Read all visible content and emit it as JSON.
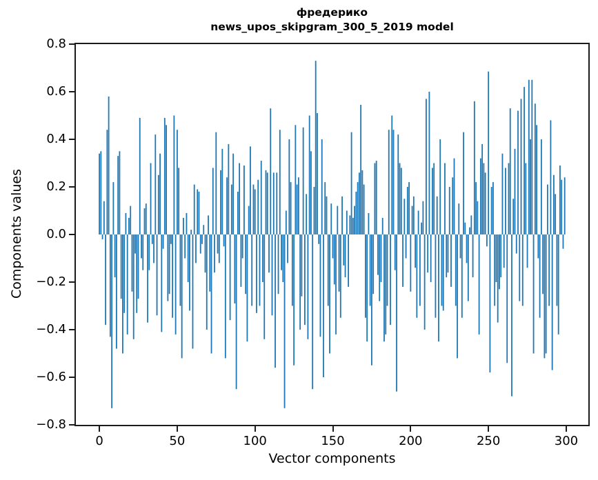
{
  "chart_data": {
    "type": "bar",
    "title": "фредерико",
    "subtitle": "news_upos_skipgram_300_5_2019 model",
    "xlabel": "Vector components",
    "ylabel": "Components values",
    "xlim": [
      -15.1,
      314.2
    ],
    "ylim": [
      -0.8,
      0.8
    ],
    "grid": false,
    "legend": "none",
    "bar_color": "#1f77b4",
    "bar_width": 0.8,
    "xticks": {
      "values": [
        0,
        50,
        100,
        150,
        200,
        250,
        300
      ],
      "labels": [
        "0",
        "50",
        "100",
        "150",
        "200",
        "250",
        "300"
      ]
    },
    "yticks": {
      "values": [
        0.8,
        0.6,
        0.4,
        0.2,
        0.0,
        -0.2,
        -0.4,
        -0.6,
        -0.8
      ],
      "labels": [
        "0.8",
        "0.6",
        "0.4",
        "0.2",
        "0.0",
        "−0.2",
        "−0.4",
        "−0.6",
        "−0.8"
      ]
    },
    "x_start": 0,
    "values": [
      0.34,
      0.35,
      -0.02,
      0.14,
      -0.38,
      0.44,
      0.58,
      -0.43,
      -0.73,
      0.22,
      -0.18,
      -0.48,
      0.33,
      0.35,
      -0.27,
      -0.5,
      -0.33,
      0.09,
      -0.42,
      0.07,
      0.12,
      -0.24,
      -0.44,
      -0.08,
      -0.33,
      -0.27,
      0.49,
      -0.1,
      -0.15,
      0.11,
      0.13,
      -0.37,
      -0.15,
      0.3,
      -0.04,
      -0.12,
      0.42,
      -0.34,
      0.25,
      0.34,
      -0.41,
      -0.06,
      0.49,
      0.46,
      -0.28,
      -0.25,
      -0.04,
      -0.35,
      0.5,
      -0.42,
      0.44,
      0.28,
      -0.3,
      -0.52,
      0.07,
      -0.1,
      0.09,
      -0.2,
      -0.32,
      0.02,
      -0.48,
      0.21,
      -0.12,
      0.19,
      0.18,
      -0.08,
      -0.04,
      0.04,
      -0.16,
      -0.4,
      0.08,
      -0.24,
      -0.5,
      0.28,
      -0.16,
      0.43,
      -0.08,
      -0.12,
      0.27,
      0.36,
      -0.05,
      -0.52,
      0.24,
      0.38,
      -0.36,
      0.21,
      0.34,
      -0.29,
      -0.65,
      0.18,
      0.3,
      -0.22,
      -0.1,
      0.29,
      -0.25,
      -0.45,
      0.12,
      0.37,
      -0.3,
      0.21,
      0.19,
      -0.33,
      0.23,
      -0.3,
      0.31,
      -0.2,
      -0.44,
      0.27,
      0.26,
      -0.16,
      0.53,
      -0.34,
      0.26,
      -0.56,
      0.26,
      -0.25,
      0.44,
      -0.15,
      -0.2,
      -0.73,
      0.1,
      -0.12,
      0.4,
      0.22,
      -0.3,
      -0.55,
      0.46,
      0.21,
      0.24,
      -0.4,
      -0.26,
      0.45,
      -0.38,
      0.17,
      -0.44,
      0.5,
      0.35,
      -0.65,
      0.2,
      0.73,
      0.51,
      -0.04,
      -0.43,
      0.4,
      -0.6,
      0.22,
      0.16,
      -0.3,
      -0.5,
      0.13,
      -0.1,
      -0.21,
      -0.42,
      0.12,
      -0.24,
      -0.35,
      0.16,
      -0.13,
      -0.18,
      0.1,
      -0.22,
      0.08,
      0.43,
      0.07,
      0.12,
      0.18,
      0.22,
      0.26,
      0.545,
      0.27,
      0.21,
      -0.35,
      -0.45,
      0.09,
      -0.3,
      -0.55,
      -0.25,
      0.3,
      0.31,
      -0.17,
      -0.28,
      -0.2,
      0.07,
      -0.45,
      -0.42,
      -0.3,
      0.44,
      -0.38,
      0.5,
      0.44,
      -0.15,
      -0.66,
      0.42,
      0.3,
      0.28,
      -0.22,
      0.15,
      -0.1,
      0.2,
      0.22,
      -0.24,
      0.12,
      0.16,
      -0.14,
      -0.35,
      0.1,
      -0.3,
      0.05,
      0.14,
      -0.4,
      0.57,
      -0.16,
      0.6,
      -0.2,
      0.28,
      0.3,
      -0.35,
      0.16,
      -0.45,
      0.4,
      -0.3,
      -0.32,
      0.3,
      -0.18,
      -0.16,
      0.2,
      -0.22,
      0.24,
      0.32,
      -0.3,
      -0.52,
      0.13,
      -0.1,
      -0.35,
      0.43,
      0.05,
      -0.12,
      -0.28,
      0.03,
      0.08,
      -0.18,
      0.56,
      0.22,
      0.14,
      -0.42,
      0.32,
      0.38,
      0.3,
      0.26,
      -0.05,
      0.685,
      -0.58,
      0.2,
      0.22,
      -0.3,
      -0.2,
      -0.37,
      -0.23,
      -0.18,
      0.34,
      -0.14,
      0.28,
      -0.54,
      0.3,
      0.53,
      -0.68,
      0.15,
      0.36,
      -0.08,
      0.52,
      -0.28,
      0.57,
      -0.3,
      0.62,
      0.3,
      -0.14,
      0.65,
      0.4,
      0.65,
      -0.5,
      0.55,
      0.46,
      -0.1,
      -0.35,
      0.4,
      -0.25,
      -0.52,
      -0.5,
      0.21,
      -0.3,
      0.48,
      -0.57,
      0.25,
      0.17,
      -0.3,
      -0.42,
      0.29,
      0.23,
      -0.06,
      0.24
    ]
  }
}
